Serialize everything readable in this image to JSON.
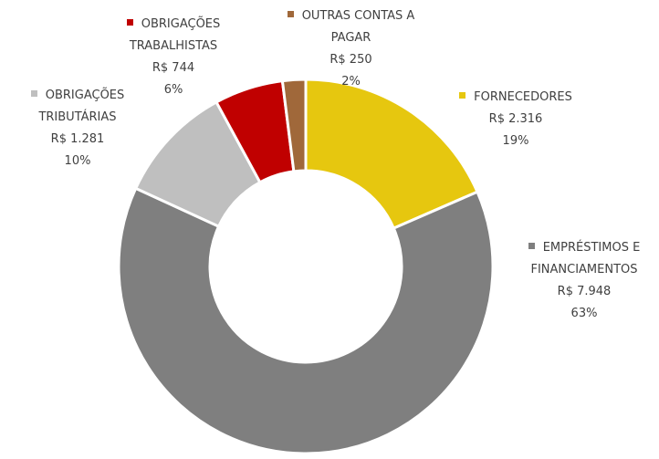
{
  "chart_data": {
    "type": "donut",
    "categories": [
      "FORNECEDORES",
      "EMPRÉSTIMOS E FINANCIAMENTOS",
      "OBRIGAÇÕES TRIBUTÁRIAS",
      "OBRIGAÇÕES TRABALHISTAS",
      "OUTRAS CONTAS A PAGAR"
    ],
    "values": [
      2316,
      7948,
      1281,
      744,
      250
    ],
    "value_labels": [
      "R$ 2.316",
      "R$ 7.948",
      "R$ 1.281",
      "R$ 744",
      "R$ 250"
    ],
    "percent_labels": [
      "19%",
      "63%",
      "10%",
      "6%",
      "2%"
    ],
    "colors": [
      "#e6c70f",
      "#7f7f7f",
      "#bfbfbf",
      "#c00000",
      "#a0683a"
    ]
  }
}
